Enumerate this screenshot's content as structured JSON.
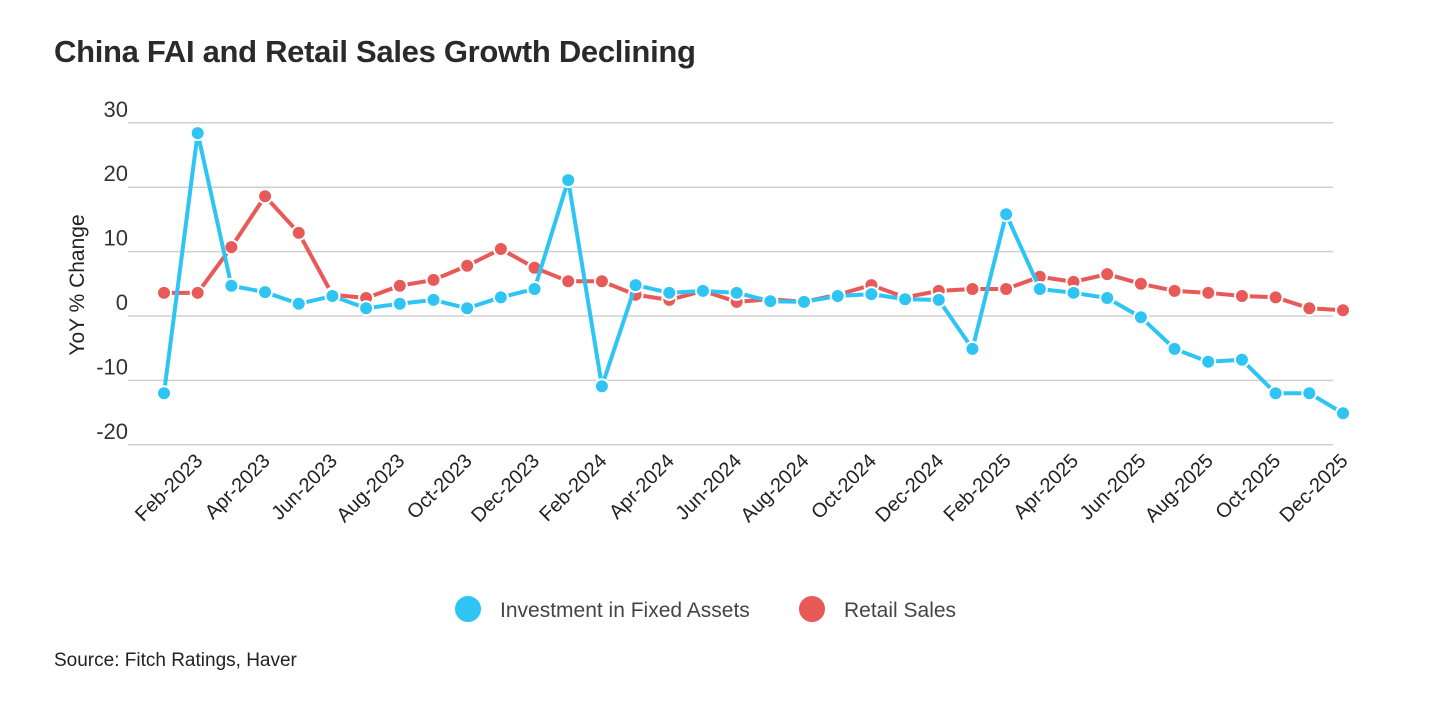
{
  "chart_data": {
    "type": "line",
    "title": "China FAI and Retail Sales Growth Declining",
    "ylabel": "YoY % Change",
    "xlabel": "",
    "ylim": [
      -20,
      30
    ],
    "yticks": [
      30,
      20,
      10,
      0,
      -10,
      -20
    ],
    "grid": true,
    "legend_position": "bottom",
    "x": [
      "Jan-2023",
      "Feb-2023",
      "Mar-2023",
      "Apr-2023",
      "May-2023",
      "Jun-2023",
      "Jul-2023",
      "Aug-2023",
      "Sep-2023",
      "Oct-2023",
      "Nov-2023",
      "Dec-2023",
      "Jan-2024",
      "Feb-2024",
      "Mar-2024",
      "Apr-2024",
      "May-2024",
      "Jun-2024",
      "Jul-2024",
      "Aug-2024",
      "Sep-2024",
      "Oct-2024",
      "Nov-2024",
      "Dec-2024",
      "Jan-2025",
      "Feb-2025",
      "Mar-2025",
      "Apr-2025",
      "May-2025",
      "Jun-2025",
      "Jul-2025",
      "Aug-2025",
      "Sep-2025",
      "Oct-2025",
      "Nov-2025",
      "Dec-2025"
    ],
    "tick_labels": [
      "Feb-2023",
      "Apr-2023",
      "Jun-2023",
      "Aug-2023",
      "Oct-2023",
      "Dec-2023",
      "Feb-2024",
      "Apr-2024",
      "Jun-2024",
      "Aug-2024",
      "Oct-2024",
      "Dec-2024",
      "Feb-2025",
      "Apr-2025",
      "Jun-2025",
      "Aug-2025",
      "Oct-2025",
      "Dec-2025"
    ],
    "series": [
      {
        "name": "Investment in Fixed Assets",
        "color": "#2ec5f5",
        "values": [
          -12,
          28.4,
          4.7,
          3.7,
          1.9,
          3.1,
          1.2,
          1.9,
          2.5,
          1.2,
          2.9,
          4.2,
          21.1,
          -10.9,
          4.8,
          3.6,
          3.9,
          3.6,
          2.3,
          2.2,
          3.1,
          3.4,
          2.6,
          2.5,
          -5.1,
          15.8,
          4.2,
          3.6,
          2.8,
          -0.2,
          -5.1,
          -7.1,
          -6.8,
          -12,
          -12,
          -15.1
        ]
      },
      {
        "name": "Retail Sales",
        "color": "#e85a58",
        "values": [
          3.6,
          3.6,
          10.7,
          18.6,
          12.9,
          3.3,
          2.8,
          4.7,
          5.6,
          7.8,
          10.4,
          7.5,
          5.4,
          5.4,
          3.3,
          2.5,
          3.9,
          2.2,
          2.6,
          2.2,
          3.3,
          4.8,
          2.9,
          3.9,
          4.2,
          4.2,
          6.1,
          5.3,
          6.5,
          5.0,
          3.9,
          3.6,
          3.1,
          2.9,
          1.2,
          0.9
        ]
      }
    ]
  },
  "source": "Source: Fitch Ratings, Haver"
}
